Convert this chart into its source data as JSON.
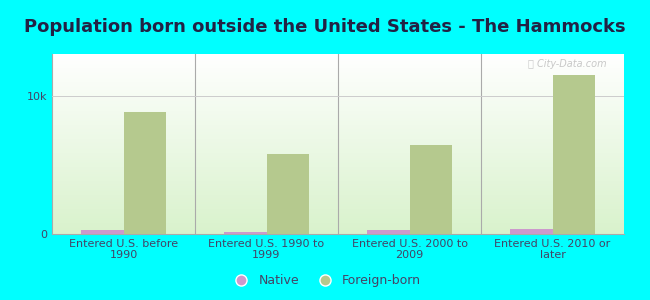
{
  "title": "Population born outside the United States - The Hammocks",
  "categories": [
    "Entered U.S. before\n1990",
    "Entered U.S. 1990 to\n1999",
    "Entered U.S. 2000 to\n2009",
    "Entered U.S. 2010 or\nlater"
  ],
  "native_values": [
    300,
    180,
    280,
    340
  ],
  "foreign_born_values": [
    8800,
    5800,
    6400,
    11500
  ],
  "native_color": "#cc99cc",
  "foreign_born_color": "#b5c98e",
  "background_color": "#00ffff",
  "bar_width": 0.3,
  "ylim": [
    0,
    13000
  ],
  "yticks": [
    0,
    10000
  ],
  "ytick_labels": [
    "0",
    "10k"
  ],
  "watermark": "ⓘ City-Data.com",
  "title_fontsize": 13,
  "tick_fontsize": 8,
  "legend_fontsize": 9,
  "title_color": "#222244",
  "tick_color": "#444466"
}
